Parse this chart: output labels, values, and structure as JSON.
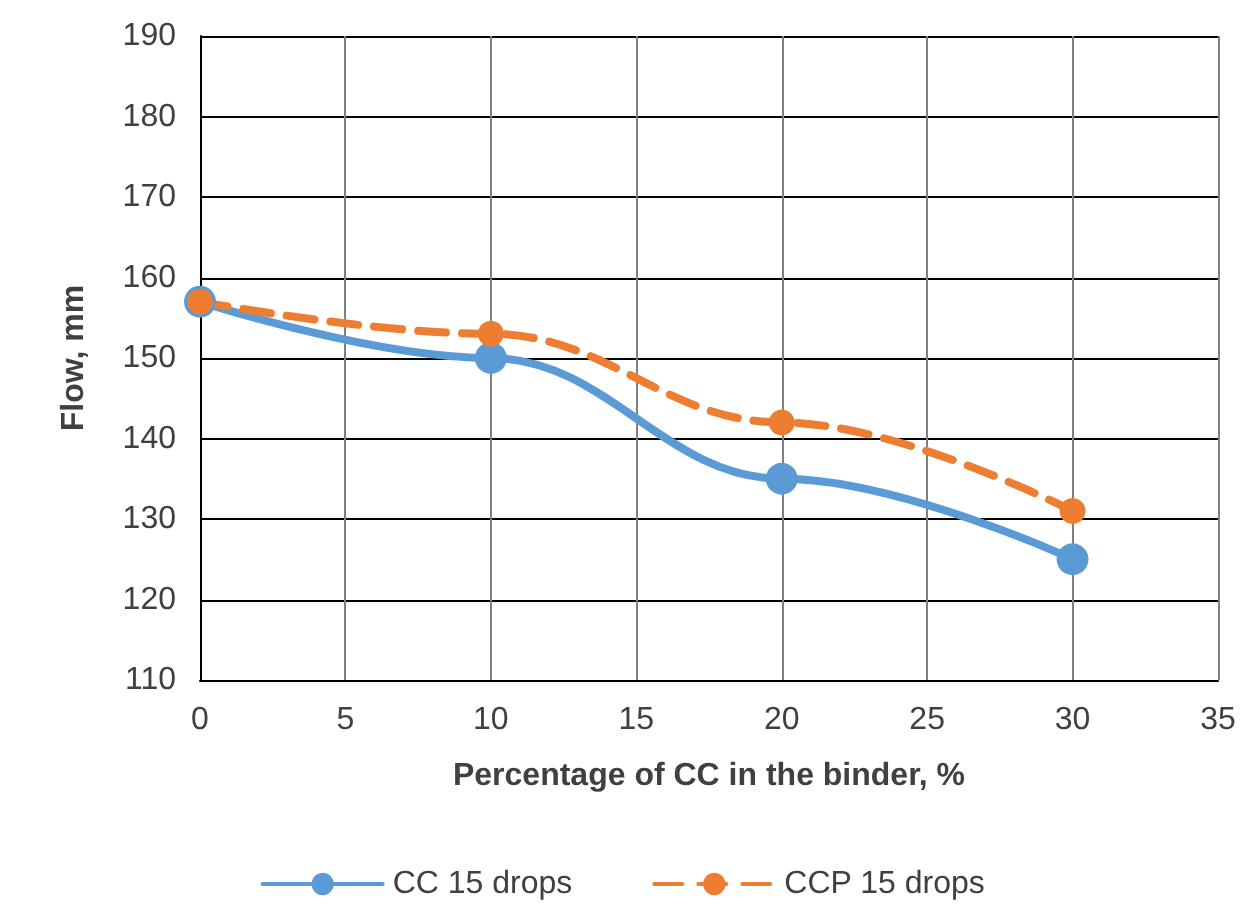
{
  "chart_data": {
    "type": "line",
    "xlabel": "Percentage of CC in the binder, %",
    "ylabel": "Flow, mm",
    "x": [
      0,
      10,
      20,
      30
    ],
    "series": [
      {
        "name": "CC 15 drops",
        "color": "#5b9bd5",
        "values": [
          157,
          150,
          135,
          125
        ],
        "line_style": "solid"
      },
      {
        "name": "CCP 15 drops",
        "color": "#ed7d31",
        "values": [
          157,
          153,
          142,
          131
        ],
        "line_style": "dashed"
      }
    ],
    "xlim": [
      0,
      35
    ],
    "xticks": [
      0,
      5,
      10,
      15,
      20,
      25,
      30,
      35
    ],
    "ylim": [
      110,
      190
    ],
    "yticks": [
      110,
      120,
      130,
      140,
      150,
      160,
      170,
      180,
      190
    ],
    "grid": true,
    "legend": "bottom",
    "marker": "circle"
  }
}
